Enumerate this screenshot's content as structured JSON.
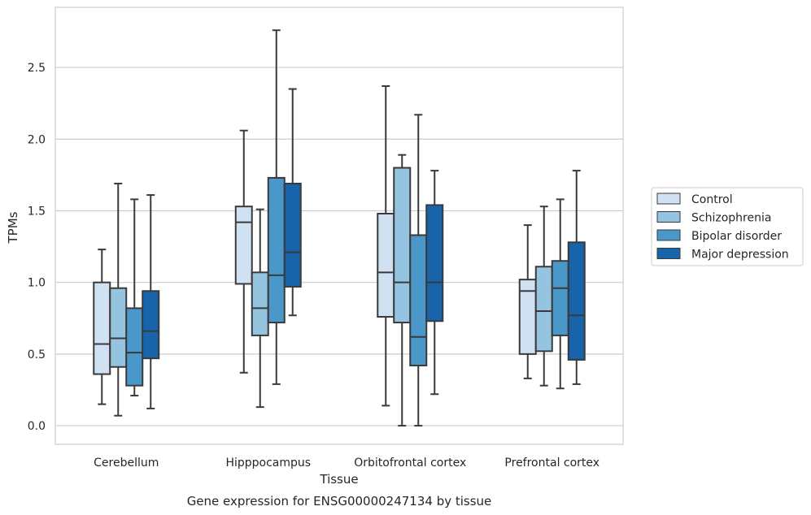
{
  "chart_data": {
    "type": "box",
    "xlabel": "Tissue",
    "ylabel": "TPMs",
    "caption": "Gene expression for ENSG00000247134 by tissue",
    "ylim": [
      -0.13,
      2.92
    ],
    "yticks": [
      0.0,
      0.5,
      1.0,
      1.5,
      2.0,
      2.5
    ],
    "ytick_labels": [
      "0.0",
      "0.5",
      "1.0",
      "1.5",
      "2.0",
      "2.5"
    ],
    "grid": "horizontal",
    "legend_position": "right",
    "categories": [
      "Cerebellum",
      "Hipppocampus",
      "Orbitofrontal cortex",
      "Prefrontal cortex"
    ],
    "series": [
      {
        "name": "Control",
        "color": "#d0e1f2",
        "boxes": [
          {
            "whislo": 0.15,
            "q1": 0.36,
            "med": 0.57,
            "q3": 1.0,
            "whishi": 1.23
          },
          {
            "whislo": 0.37,
            "q1": 0.99,
            "med": 1.42,
            "q3": 1.53,
            "whishi": 2.06
          },
          {
            "whislo": 0.14,
            "q1": 0.76,
            "med": 1.07,
            "q3": 1.48,
            "whishi": 2.37
          },
          {
            "whislo": 0.33,
            "q1": 0.5,
            "med": 0.94,
            "q3": 1.02,
            "whishi": 1.4
          }
        ]
      },
      {
        "name": "Schizophrenia",
        "color": "#94c4df",
        "boxes": [
          {
            "whislo": 0.07,
            "q1": 0.41,
            "med": 0.61,
            "q3": 0.96,
            "whishi": 1.69
          },
          {
            "whislo": 0.13,
            "q1": 0.63,
            "med": 0.82,
            "q3": 1.07,
            "whishi": 1.51
          },
          {
            "whislo": 0.0,
            "q1": 0.72,
            "med": 1.0,
            "q3": 1.8,
            "whishi": 1.89
          },
          {
            "whislo": 0.28,
            "q1": 0.52,
            "med": 0.8,
            "q3": 1.11,
            "whishi": 1.53
          }
        ]
      },
      {
        "name": "Bipolar disorder",
        "color": "#4a98c9",
        "boxes": [
          {
            "whislo": 0.21,
            "q1": 0.28,
            "med": 0.51,
            "q3": 0.82,
            "whishi": 1.58
          },
          {
            "whislo": 0.29,
            "q1": 0.72,
            "med": 1.05,
            "q3": 1.73,
            "whishi": 2.76
          },
          {
            "whislo": 0.0,
            "q1": 0.42,
            "med": 0.62,
            "q3": 1.33,
            "whishi": 2.17
          },
          {
            "whislo": 0.26,
            "q1": 0.63,
            "med": 0.96,
            "q3": 1.15,
            "whishi": 1.58
          }
        ]
      },
      {
        "name": "Major depression",
        "color": "#1764ab",
        "boxes": [
          {
            "whislo": 0.12,
            "q1": 0.47,
            "med": 0.66,
            "q3": 0.94,
            "whishi": 1.61
          },
          {
            "whislo": 0.77,
            "q1": 0.97,
            "med": 1.21,
            "q3": 1.69,
            "whishi": 2.35
          },
          {
            "whislo": 0.22,
            "q1": 0.73,
            "med": 1.0,
            "q3": 1.54,
            "whishi": 1.78
          },
          {
            "whislo": 0.29,
            "q1": 0.46,
            "med": 0.77,
            "q3": 1.28,
            "whishi": 1.78
          }
        ]
      }
    ]
  }
}
